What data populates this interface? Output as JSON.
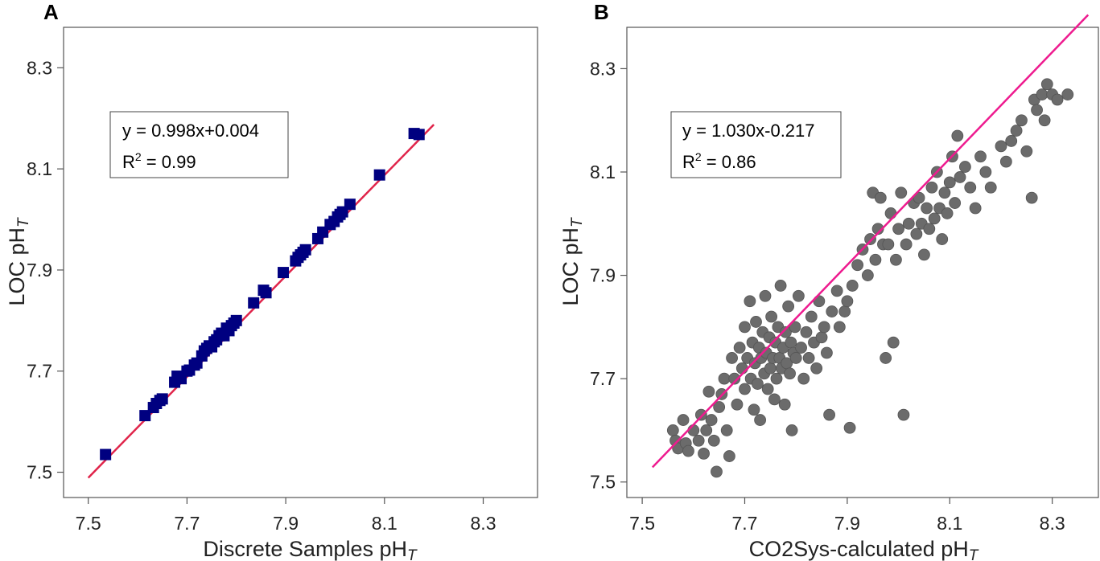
{
  "chart_data": [
    {
      "panel": "A",
      "type": "scatter",
      "marker": "square",
      "marker_color": "#000080",
      "line_color": "#e0244a",
      "xlabel": "Discrete Samples pH",
      "xlabel_sub": "T",
      "ylabel": "LOC pH",
      "ylabel_sub": "T",
      "xlim": [
        7.45,
        8.41
      ],
      "ylim": [
        7.45,
        8.38
      ],
      "x_ticks": [
        "7.5",
        "7.7",
        "7.9",
        "8.1",
        "8.3"
      ],
      "y_ticks": [
        "7.5",
        "7.7",
        "7.9",
        "8.1",
        "8.3"
      ],
      "equation": "y = 0.998x+0.004",
      "r2_prefix": "R",
      "r2_sup": "2",
      "r2_value": " = 0.99",
      "fit": {
        "slope": 0.998,
        "intercept": 0.004,
        "x_range": [
          7.5,
          8.2
        ]
      },
      "points": [
        [
          7.535,
          7.535
        ],
        [
          7.615,
          7.612
        ],
        [
          7.632,
          7.628
        ],
        [
          7.638,
          7.636
        ],
        [
          7.645,
          7.642
        ],
        [
          7.65,
          7.645
        ],
        [
          7.675,
          7.678
        ],
        [
          7.68,
          7.69
        ],
        [
          7.688,
          7.685
        ],
        [
          7.7,
          7.7
        ],
        [
          7.705,
          7.702
        ],
        [
          7.715,
          7.712
        ],
        [
          7.72,
          7.716
        ],
        [
          7.73,
          7.73
        ],
        [
          7.735,
          7.74
        ],
        [
          7.74,
          7.745
        ],
        [
          7.745,
          7.75
        ],
        [
          7.75,
          7.748
        ],
        [
          7.755,
          7.758
        ],
        [
          7.76,
          7.762
        ],
        [
          7.765,
          7.77
        ],
        [
          7.77,
          7.775
        ],
        [
          7.775,
          7.77
        ],
        [
          7.78,
          7.785
        ],
        [
          7.785,
          7.78
        ],
        [
          7.79,
          7.79
        ],
        [
          7.795,
          7.795
        ],
        [
          7.8,
          7.8
        ],
        [
          7.835,
          7.835
        ],
        [
          7.855,
          7.86
        ],
        [
          7.86,
          7.855
        ],
        [
          7.895,
          7.895
        ],
        [
          7.92,
          7.918
        ],
        [
          7.925,
          7.925
        ],
        [
          7.93,
          7.93
        ],
        [
          7.935,
          7.935
        ],
        [
          7.94,
          7.94
        ],
        [
          7.965,
          7.962
        ],
        [
          7.975,
          7.975
        ],
        [
          7.99,
          7.99
        ],
        [
          7.998,
          7.996
        ],
        [
          8.005,
          8.005
        ],
        [
          8.01,
          8.01
        ],
        [
          8.015,
          8.015
        ],
        [
          8.03,
          8.03
        ],
        [
          8.09,
          8.088
        ],
        [
          8.16,
          8.17
        ],
        [
          8.17,
          8.168
        ]
      ]
    },
    {
      "panel": "B",
      "type": "scatter",
      "marker": "circle",
      "marker_color": "#6b6b6b",
      "line_color": "#ee1b8f",
      "xlabel": "CO2Sys-calculated pH",
      "xlabel_sub": "T",
      "ylabel": "LOC pH",
      "ylabel_sub": "T",
      "xlim": [
        7.47,
        8.39
      ],
      "ylim": [
        7.47,
        8.38
      ],
      "x_ticks": [
        "7.5",
        "7.7",
        "7.9",
        "8.1",
        "8.3"
      ],
      "y_ticks": [
        "7.5",
        "7.7",
        "7.9",
        "8.1",
        "8.3"
      ],
      "equation": "y = 1.030x-0.217",
      "r2_prefix": "R",
      "r2_sup": "2",
      "r2_value": " = 0.86",
      "fit": {
        "slope": 1.03,
        "intercept": -0.217,
        "x_range": [
          7.52,
          8.37
        ]
      },
      "points": [
        [
          7.56,
          7.6
        ],
        [
          7.565,
          7.58
        ],
        [
          7.57,
          7.565
        ],
        [
          7.58,
          7.62
        ],
        [
          7.585,
          7.575
        ],
        [
          7.59,
          7.56
        ],
        [
          7.6,
          7.6
        ],
        [
          7.61,
          7.58
        ],
        [
          7.615,
          7.63
        ],
        [
          7.62,
          7.555
        ],
        [
          7.625,
          7.6
        ],
        [
          7.63,
          7.675
        ],
        [
          7.635,
          7.62
        ],
        [
          7.64,
          7.58
        ],
        [
          7.645,
          7.52
        ],
        [
          7.65,
          7.645
        ],
        [
          7.655,
          7.67
        ],
        [
          7.66,
          7.7
        ],
        [
          7.665,
          7.6
        ],
        [
          7.67,
          7.55
        ],
        [
          7.675,
          7.74
        ],
        [
          7.68,
          7.7
        ],
        [
          7.685,
          7.65
        ],
        [
          7.69,
          7.76
        ],
        [
          7.695,
          7.72
        ],
        [
          7.7,
          7.8
        ],
        [
          7.7,
          7.68
        ],
        [
          7.705,
          7.74
        ],
        [
          7.71,
          7.85
        ],
        [
          7.712,
          7.7
        ],
        [
          7.715,
          7.77
        ],
        [
          7.718,
          7.64
        ],
        [
          7.72,
          7.73
        ],
        [
          7.722,
          7.81
        ],
        [
          7.725,
          7.69
        ],
        [
          7.728,
          7.76
        ],
        [
          7.73,
          7.62
        ],
        [
          7.732,
          7.74
        ],
        [
          7.735,
          7.79
        ],
        [
          7.738,
          7.71
        ],
        [
          7.74,
          7.86
        ],
        [
          7.742,
          7.75
        ],
        [
          7.745,
          7.68
        ],
        [
          7.748,
          7.78
        ],
        [
          7.75,
          7.72
        ],
        [
          7.752,
          7.82
        ],
        [
          7.755,
          7.74
        ],
        [
          7.758,
          7.66
        ],
        [
          7.76,
          7.77
        ],
        [
          7.762,
          7.7
        ],
        [
          7.765,
          7.8
        ],
        [
          7.768,
          7.74
        ],
        [
          7.77,
          7.88
        ],
        [
          7.772,
          7.72
        ],
        [
          7.775,
          7.76
        ],
        [
          7.778,
          7.65
        ],
        [
          7.78,
          7.79
        ],
        [
          7.782,
          7.73
        ],
        [
          7.785,
          7.84
        ],
        [
          7.788,
          7.71
        ],
        [
          7.79,
          7.77
        ],
        [
          7.792,
          7.6
        ],
        [
          7.795,
          7.75
        ],
        [
          7.798,
          7.8
        ],
        [
          7.8,
          7.74
        ],
        [
          7.805,
          7.86
        ],
        [
          7.81,
          7.76
        ],
        [
          7.815,
          7.7
        ],
        [
          7.82,
          7.79
        ],
        [
          7.825,
          7.74
        ],
        [
          7.83,
          7.82
        ],
        [
          7.835,
          7.77
        ],
        [
          7.84,
          7.72
        ],
        [
          7.845,
          7.85
        ],
        [
          7.85,
          7.78
        ],
        [
          7.855,
          7.8
        ],
        [
          7.86,
          7.75
        ],
        [
          7.865,
          7.63
        ],
        [
          7.87,
          7.83
        ],
        [
          7.88,
          7.87
        ],
        [
          7.885,
          7.8
        ],
        [
          7.895,
          7.83
        ],
        [
          7.9,
          7.85
        ],
        [
          7.905,
          7.605
        ],
        [
          7.91,
          7.88
        ],
        [
          7.92,
          7.92
        ],
        [
          7.93,
          7.95
        ],
        [
          7.94,
          7.9
        ],
        [
          7.945,
          7.97
        ],
        [
          7.95,
          8.06
        ],
        [
          7.955,
          7.93
        ],
        [
          7.96,
          7.99
        ],
        [
          7.965,
          8.05
        ],
        [
          7.97,
          7.96
        ],
        [
          7.975,
          7.74
        ],
        [
          7.98,
          7.96
        ],
        [
          7.985,
          8.02
        ],
        [
          7.99,
          7.77
        ],
        [
          7.995,
          7.93
        ],
        [
          8.0,
          7.99
        ],
        [
          8.005,
          8.06
        ],
        [
          8.01,
          7.63
        ],
        [
          8.015,
          7.96
        ],
        [
          8.02,
          8.0
        ],
        [
          8.03,
          8.04
        ],
        [
          8.035,
          7.98
        ],
        [
          8.04,
          8.05
        ],
        [
          8.045,
          8.0
        ],
        [
          8.05,
          7.94
        ],
        [
          8.055,
          8.03
        ],
        [
          8.06,
          7.99
        ],
        [
          8.065,
          8.07
        ],
        [
          8.07,
          8.01
        ],
        [
          8.075,
          8.1
        ],
        [
          8.08,
          8.03
        ],
        [
          8.085,
          7.97
        ],
        [
          8.09,
          8.06
        ],
        [
          8.095,
          8.02
        ],
        [
          8.1,
          8.08
        ],
        [
          8.105,
          8.13
        ],
        [
          8.11,
          8.04
        ],
        [
          8.115,
          8.17
        ],
        [
          8.12,
          8.09
        ],
        [
          8.13,
          8.11
        ],
        [
          8.14,
          8.07
        ],
        [
          8.15,
          8.03
        ],
        [
          8.16,
          8.13
        ],
        [
          8.17,
          8.1
        ],
        [
          8.18,
          8.07
        ],
        [
          8.2,
          8.15
        ],
        [
          8.21,
          8.12
        ],
        [
          8.22,
          8.16
        ],
        [
          8.23,
          8.18
        ],
        [
          8.24,
          8.2
        ],
        [
          8.25,
          8.14
        ],
        [
          8.26,
          8.05
        ],
        [
          8.265,
          8.24
        ],
        [
          8.27,
          8.22
        ],
        [
          8.28,
          8.25
        ],
        [
          8.285,
          8.2
        ],
        [
          8.29,
          8.27
        ],
        [
          8.3,
          8.25
        ],
        [
          8.31,
          8.24
        ],
        [
          8.33,
          8.25
        ]
      ]
    }
  ]
}
